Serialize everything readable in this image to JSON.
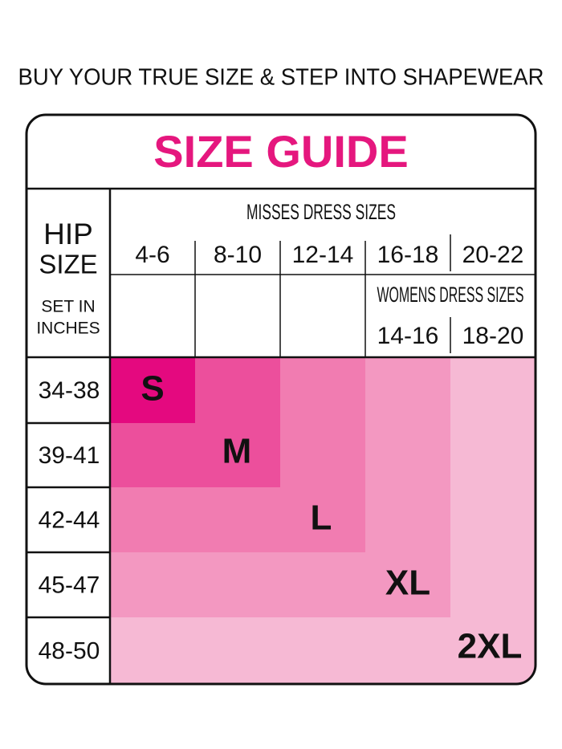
{
  "header": "BUY YOUR TRUE SIZE & STEP INTO SHAPEWEAR",
  "guide": {
    "title": "SIZE GUIDE",
    "hip_label": {
      "line1": "HIP",
      "line2": "SIZE",
      "note1": "SET IN",
      "note2": "INCHES"
    },
    "misses": {
      "title": "MISSES DRESS SIZES",
      "sizes": [
        "4-6",
        "8-10",
        "12-14",
        "16-18",
        "20-22"
      ]
    },
    "womens": {
      "title": "WOMENS DRESS SIZES",
      "sizes": [
        "14-16",
        "18-20"
      ]
    },
    "hip_sizes": [
      "34-38",
      "39-41",
      "42-44",
      "45-47",
      "48-50"
    ],
    "letter_sizes": [
      "S",
      "M",
      "L",
      "XL",
      "2XL"
    ]
  }
}
